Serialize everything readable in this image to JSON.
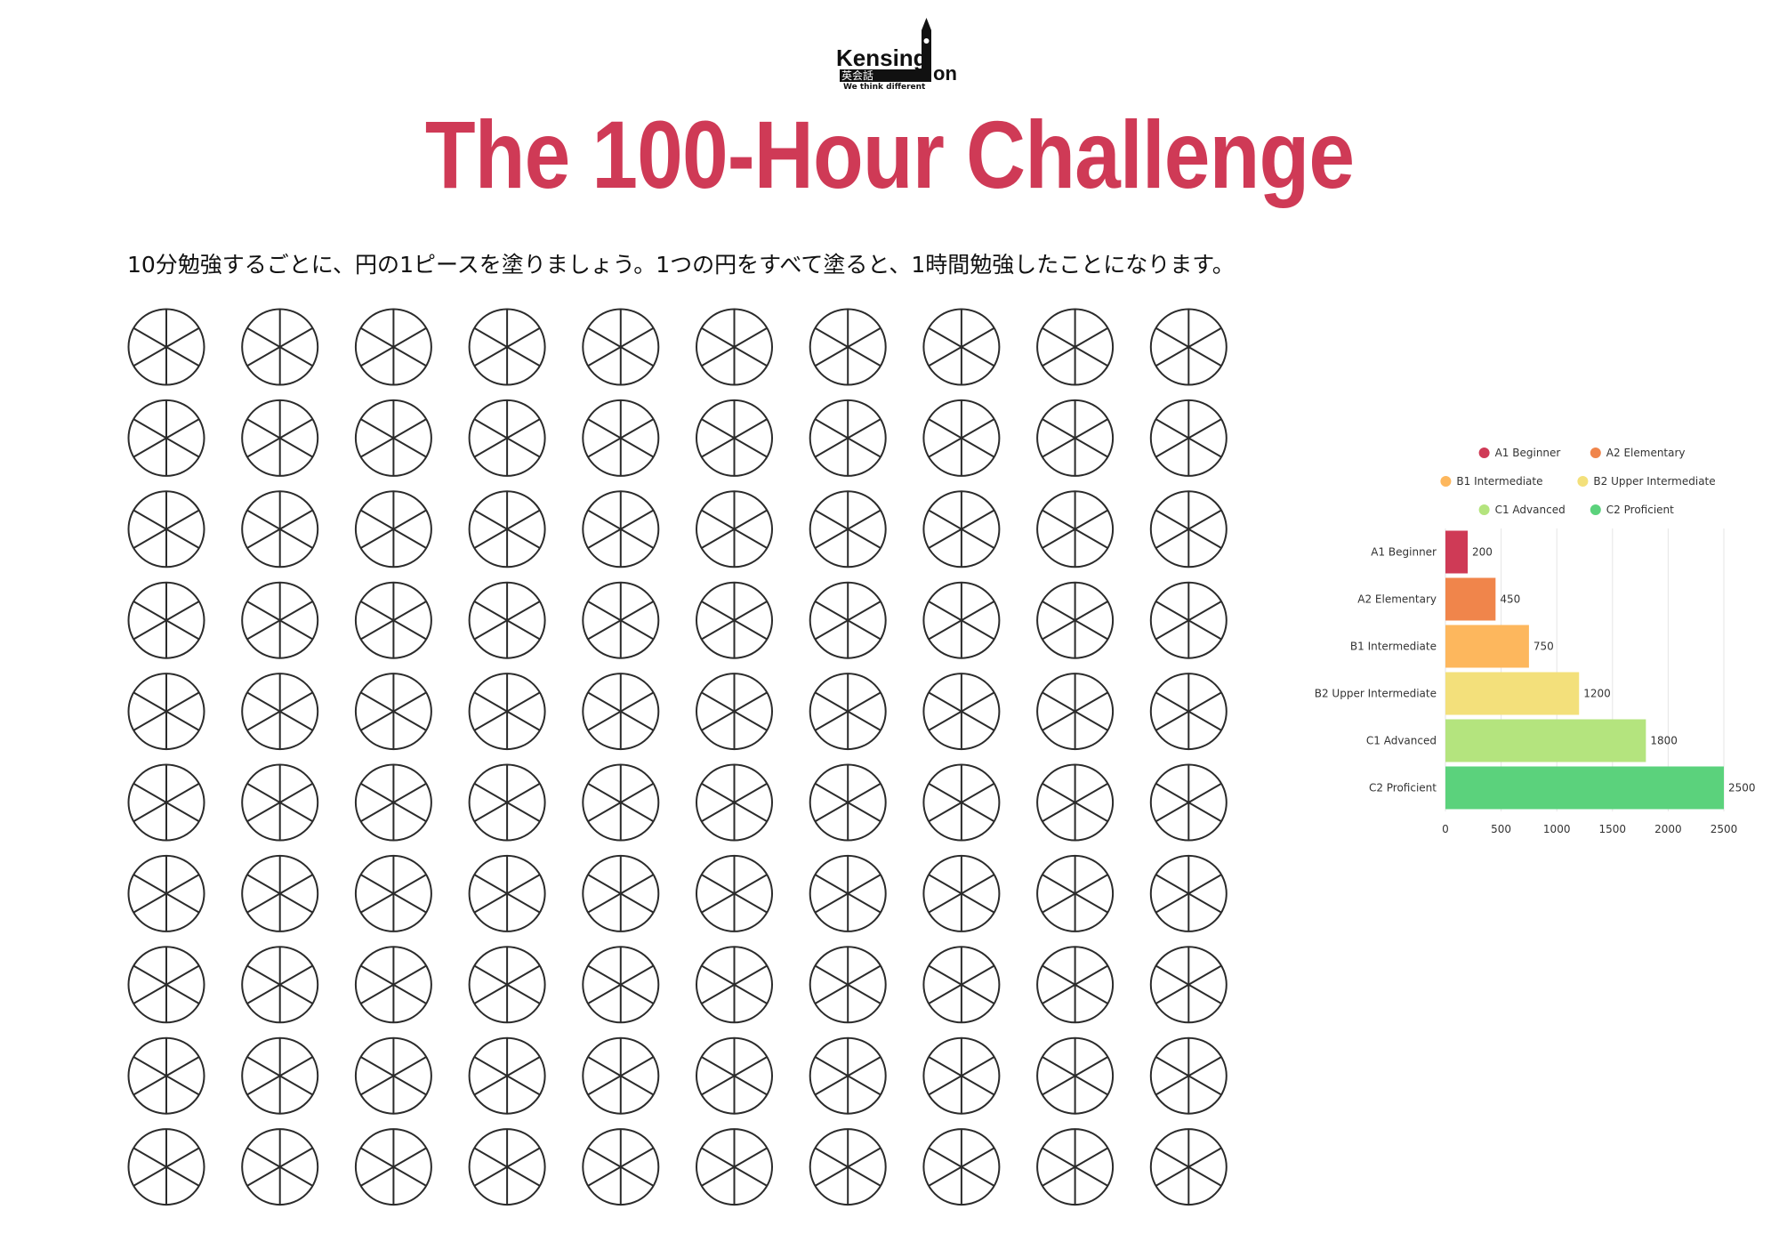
{
  "logo": {
    "name_left": "Kensing",
    "name_right": "on",
    "japanese": "英会話",
    "tagline": "We think different"
  },
  "title": "The 100-Hour Challenge",
  "instructions": "10分勉強するごとに、円の1ピースを塗りましょう。1つの円をすべて塗ると、1時間勉強したことになります。",
  "grid": {
    "rows": 10,
    "columns": 10,
    "pieces_per_circle": 6
  },
  "colors": {
    "title": "#cf3a56",
    "circle_stroke": "#2b2b2b",
    "text": "#111111"
  },
  "chart_data": {
    "type": "bar",
    "orientation": "horizontal",
    "categories": [
      "A1 Beginner",
      "A2 Elementary",
      "B1 Intermediate",
      "B2 Upper Intermediate",
      "C1 Advanced",
      "C2 Proficient"
    ],
    "values": [
      200,
      450,
      750,
      1200,
      1800,
      2500
    ],
    "value_labels": [
      "200",
      "450",
      "750",
      "1200",
      "1800",
      "2500"
    ],
    "colors": [
      "#cf3a56",
      "#f0854b",
      "#fdb75d",
      "#f3e07b",
      "#b4e47e",
      "#5bd27c"
    ],
    "xlim": [
      0,
      2500
    ],
    "xticks": [
      0,
      500,
      1000,
      1500,
      2000,
      2500
    ],
    "xtick_labels": [
      "0",
      "500",
      "1000",
      "1500",
      "2000",
      "2500"
    ],
    "grid": true,
    "legend": {
      "placement": "top",
      "entries": [
        "A1 Beginner",
        "A2 Elementary",
        "B1 Intermediate",
        "B2 Upper Intermediate",
        "C1 Advanced",
        "C2 Proficient"
      ]
    },
    "title": "",
    "xlabel": "",
    "ylabel": ""
  }
}
